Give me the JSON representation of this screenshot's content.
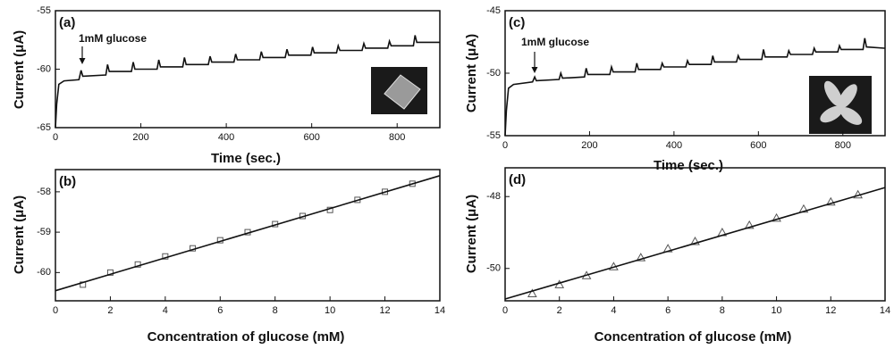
{
  "chart_data": [
    {
      "type": "line",
      "title": "(a)",
      "annotation": "1mM glucose",
      "x_label": "Time (sec.)",
      "y_label": "Current (μA)",
      "xlim": [
        0,
        900
      ],
      "ylim": [
        -65,
        -55
      ],
      "xticks": [
        0,
        200,
        400,
        600,
        800
      ],
      "yticks": [
        -65,
        -60,
        -55
      ],
      "series": [
        {
          "color": "#111111",
          "x": [
            0,
            3,
            8,
            20,
            55,
            60,
            64,
            118,
            122,
            126,
            178,
            182,
            186,
            238,
            242,
            246,
            298,
            302,
            306,
            358,
            362,
            366,
            418,
            422,
            426,
            478,
            482,
            486,
            538,
            542,
            546,
            598,
            602,
            606,
            658,
            662,
            666,
            718,
            722,
            726,
            778,
            782,
            786,
            838,
            842,
            846,
            898,
            900
          ],
          "values": [
            -65,
            -63,
            -61.3,
            -61,
            -60.9,
            -60.1,
            -60.6,
            -60.5,
            -59.6,
            -60.2,
            -60.2,
            -59.4,
            -60,
            -60,
            -59.2,
            -59.8,
            -59.8,
            -59,
            -59.6,
            -59.6,
            -58.9,
            -59.4,
            -59.4,
            -58.7,
            -59.2,
            -59.2,
            -58.5,
            -59,
            -59,
            -58.3,
            -58.8,
            -58.8,
            -58.1,
            -58.6,
            -58.6,
            -58,
            -58.4,
            -58.4,
            -57.8,
            -58.2,
            -58.2,
            -57.6,
            -58,
            -58,
            -57.1,
            -57.7,
            -57.7,
            -57.7
          ]
        }
      ]
    },
    {
      "type": "scatter",
      "title": "(b)",
      "x_label": "Concentration of glucose (mM)",
      "y_label": "Current (μA)",
      "xlim": [
        0,
        14
      ],
      "ylim": [
        -60.7,
        -57.45
      ],
      "xticks": [
        0,
        2,
        4,
        6,
        8,
        10,
        12,
        14
      ],
      "yticks": [
        -60,
        -59,
        -58
      ],
      "series": [
        {
          "color": "#555555",
          "marker": "square",
          "x": [
            1,
            2,
            3,
            4,
            5,
            6,
            7,
            8,
            9,
            10,
            11,
            12,
            13
          ],
          "values": [
            -60.3,
            -60,
            -59.8,
            -59.6,
            -59.4,
            -59.2,
            -59,
            -58.8,
            -58.6,
            -58.45,
            -58.2,
            -58,
            -57.8
          ]
        },
        {
          "color": "#111111",
          "mode": "line",
          "x": [
            0,
            14
          ],
          "values": [
            -60.45,
            -57.6
          ]
        }
      ]
    },
    {
      "type": "line",
      "title": "(c)",
      "annotation": "1mM glucose",
      "x_label": "Time (sec.)",
      "y_label": "Current (μA)",
      "xlim": [
        0,
        900
      ],
      "ylim": [
        -55,
        -45
      ],
      "xticks": [
        0,
        200,
        400,
        600,
        800
      ],
      "yticks": [
        -55,
        -50,
        -45
      ],
      "series": [
        {
          "color": "#111111",
          "x": [
            0,
            3,
            8,
            20,
            65,
            70,
            74,
            128,
            132,
            136,
            188,
            192,
            196,
            248,
            252,
            256,
            308,
            312,
            316,
            368,
            372,
            376,
            428,
            432,
            436,
            488,
            492,
            496,
            548,
            552,
            556,
            608,
            612,
            616,
            668,
            672,
            676,
            728,
            732,
            736,
            788,
            792,
            796,
            848,
            852,
            856,
            898,
            900
          ],
          "values": [
            -55,
            -53,
            -51.2,
            -50.9,
            -50.7,
            -50.3,
            -50.6,
            -50.5,
            -50,
            -50.4,
            -50.3,
            -49.6,
            -50.1,
            -50.1,
            -49.5,
            -49.9,
            -49.9,
            -49.2,
            -49.7,
            -49.7,
            -49.2,
            -49.5,
            -49.5,
            -49,
            -49.3,
            -49.3,
            -48.6,
            -49.1,
            -49.1,
            -48.6,
            -48.9,
            -48.9,
            -48.1,
            -48.7,
            -48.7,
            -48.2,
            -48.5,
            -48.5,
            -48,
            -48.3,
            -48.3,
            -47.8,
            -48.1,
            -48.1,
            -47.2,
            -47.9,
            -48,
            -48
          ]
        }
      ]
    },
    {
      "type": "scatter",
      "title": "(d)",
      "x_label": "Concentration of glucose (mM)",
      "y_label": "Current (μA)",
      "xlim": [
        0,
        14
      ],
      "ylim": [
        -50.9,
        -47.2
      ],
      "xticks": [
        0,
        2,
        4,
        6,
        8,
        10,
        12,
        14
      ],
      "yticks": [
        -50,
        -48
      ],
      "series": [
        {
          "color": "#555555",
          "marker": "triangle",
          "x": [
            1,
            2,
            3,
            4,
            5,
            6,
            7,
            8,
            9,
            10,
            11,
            12,
            13
          ],
          "values": [
            -50.7,
            -50.45,
            -50.2,
            -49.95,
            -49.7,
            -49.45,
            -49.25,
            -49,
            -48.8,
            -48.6,
            -48.35,
            -48.15,
            -47.95
          ]
        },
        {
          "color": "#111111",
          "mode": "line",
          "x": [
            0,
            14
          ],
          "values": [
            -50.85,
            -47.75
          ]
        }
      ]
    }
  ]
}
